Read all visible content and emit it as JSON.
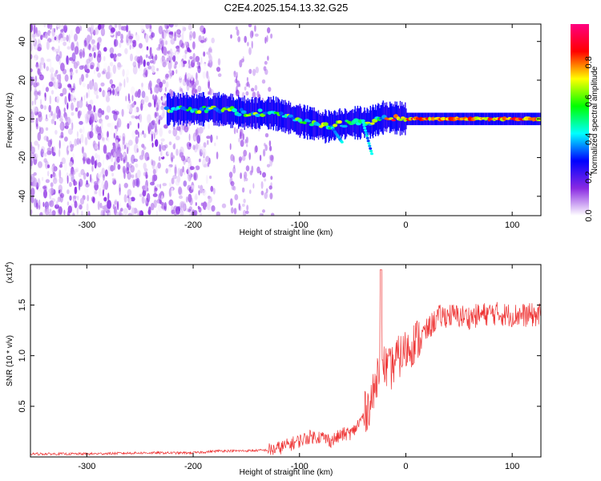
{
  "title": "C2E4.2025.154.13.32.G25",
  "chart_data": [
    {
      "type": "heatmap",
      "xlabel": "Height of straight line (km)",
      "ylabel": "Frequency (Hz)",
      "xlim": [
        -353,
        127
      ],
      "ylim": [
        -50,
        49
      ],
      "xticks": [
        -300,
        -200,
        -100,
        0,
        100
      ],
      "yticks": [
        -40,
        -20,
        0,
        20,
        40
      ],
      "colorbar": {
        "label": "Normalized spectral amplitude",
        "range": [
          0,
          1
        ],
        "ticks": [
          0.0,
          0.2,
          0.4,
          0.6,
          0.8
        ],
        "colors": [
          "#ffffff",
          "#8a2be2",
          "#0000ff",
          "#00ffff",
          "#00ff00",
          "#ffff00",
          "#ff0000",
          "#ff0080"
        ]
      },
      "trace": {
        "x": [
          -225,
          -200,
          -175,
          -150,
          -125,
          -100,
          -75,
          -50,
          -35,
          -20,
          0,
          50,
          100,
          127
        ],
        "y": [
          5,
          5,
          5,
          3,
          3,
          -1,
          -4,
          -2,
          -2,
          1,
          0,
          0,
          0,
          0
        ]
      },
      "noise_region_x": [
        -353,
        -200
      ],
      "noise_band_x": [
        -165,
        -125
      ]
    },
    {
      "type": "line",
      "xlabel": "Height of straight line (km)",
      "ylabel": "SNR (10 * v/v)",
      "scale_label": "(x10^4)",
      "xlim": [
        -353,
        127
      ],
      "ylim": [
        0,
        1.9
      ],
      "xticks": [
        -300,
        -200,
        -100,
        0,
        100
      ],
      "yticks": [
        0.5,
        1.0,
        1.5
      ],
      "color": "#ee3333",
      "series": [
        {
          "x": [
            -353,
            -300,
            -250,
            -200,
            -175,
            -150,
            -125,
            -110,
            -100,
            -90,
            -80,
            -70,
            -60,
            -50,
            -40,
            -30,
            -25,
            -20,
            -15,
            -10,
            -5,
            0,
            10,
            20,
            30,
            40,
            60,
            80,
            100,
            127
          ],
          "y": [
            0.03,
            0.03,
            0.04,
            0.04,
            0.06,
            0.06,
            0.07,
            0.12,
            0.16,
            0.2,
            0.2,
            0.16,
            0.22,
            0.24,
            0.4,
            0.62,
            0.95,
            0.9,
            0.85,
            0.95,
            1.0,
            1.05,
            1.15,
            1.25,
            1.38,
            1.4,
            1.38,
            1.42,
            1.4,
            1.4
          ]
        }
      ]
    }
  ]
}
